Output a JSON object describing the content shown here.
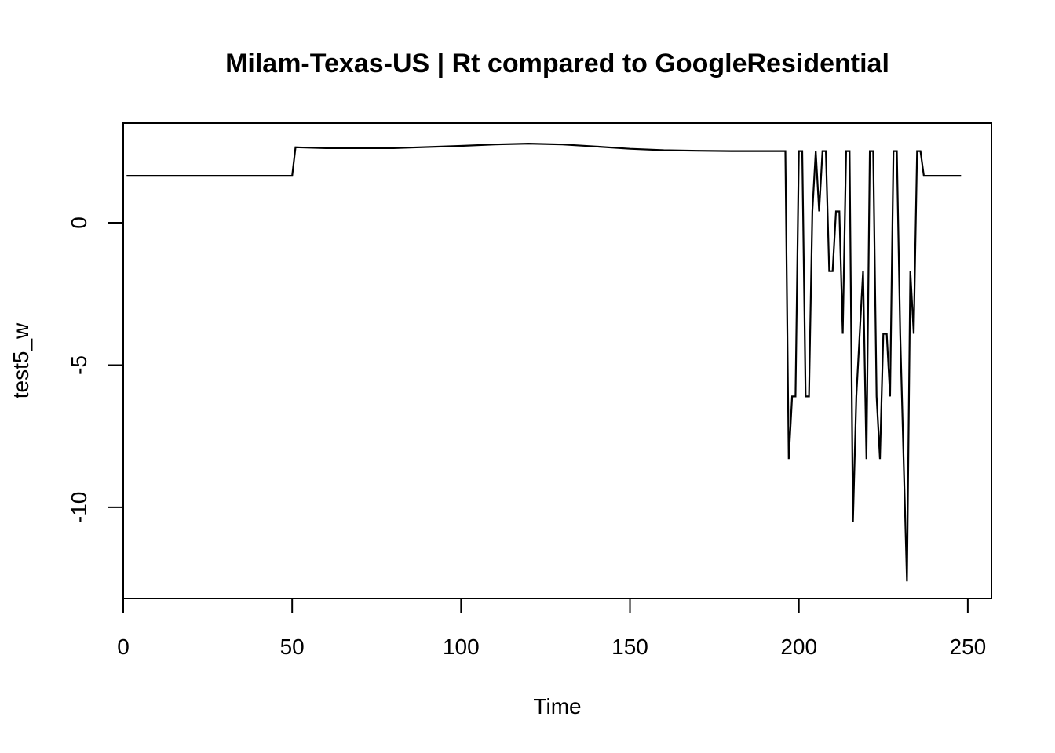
{
  "chart_data": {
    "type": "line",
    "title": "Milam-Texas-US | Rt compared to GoogleResidential",
    "xlabel": "Time",
    "ylabel": "test5_w",
    "xlim": [
      0,
      257
    ],
    "ylim": [
      -13.2,
      3.5
    ],
    "x_ticks": [
      0,
      50,
      100,
      150,
      200,
      250
    ],
    "y_ticks": [
      0,
      -5,
      -10
    ],
    "x_tick_labels": [
      "0",
      "50",
      "100",
      "150",
      "200",
      "250"
    ],
    "y_tick_labels": [
      "0",
      "-5",
      "-10"
    ],
    "grid": false,
    "legend": "none",
    "line_color": "#000000",
    "series": [
      {
        "x": [
          1,
          50,
          51,
          60,
          80,
          100,
          110,
          120,
          130,
          140,
          150,
          160,
          170,
          180,
          190,
          196,
          197,
          198,
          199,
          200,
          201,
          202,
          203,
          204,
          205,
          206,
          207,
          208,
          209,
          210,
          211,
          212,
          213,
          214,
          215,
          216,
          217,
          218,
          219,
          220,
          221,
          222,
          223,
          224,
          225,
          226,
          227,
          228,
          229,
          230,
          231,
          232,
          233,
          234,
          235,
          236,
          237,
          248
        ],
        "y": [
          1.65,
          1.65,
          2.65,
          2.62,
          2.62,
          2.7,
          2.75,
          2.78,
          2.75,
          2.68,
          2.6,
          2.55,
          2.53,
          2.52,
          2.52,
          2.52,
          -8.3,
          -6.1,
          -6.1,
          2.52,
          2.52,
          -6.1,
          -6.1,
          0.4,
          2.52,
          0.4,
          2.52,
          2.52,
          -1.7,
          -1.7,
          0.4,
          0.4,
          -3.9,
          2.52,
          2.52,
          -10.5,
          -6.1,
          -3.9,
          -1.7,
          -8.3,
          2.52,
          2.52,
          -6.1,
          -8.3,
          -3.9,
          -3.9,
          -6.1,
          2.52,
          2.52,
          -3.9,
          -8.3,
          -12.6,
          -1.7,
          -3.9,
          2.52,
          2.52,
          1.65,
          1.65
        ]
      }
    ]
  }
}
